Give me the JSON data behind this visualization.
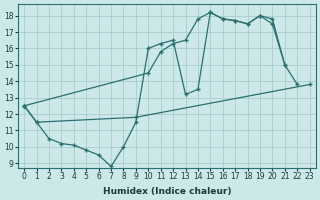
{
  "xlabel": "Humidex (Indice chaleur)",
  "bg_color": "#cce8e8",
  "grid_color": "#aacccc",
  "line_color": "#2a7070",
  "xlim": [
    -0.5,
    23.5
  ],
  "ylim": [
    8.7,
    18.7
  ],
  "xticks": [
    0,
    1,
    2,
    3,
    4,
    5,
    6,
    7,
    8,
    9,
    10,
    11,
    12,
    13,
    14,
    15,
    16,
    17,
    18,
    19,
    20,
    21,
    22,
    23
  ],
  "yticks": [
    9,
    10,
    11,
    12,
    13,
    14,
    15,
    16,
    17,
    18
  ],
  "line1_x": [
    0,
    1,
    2,
    3,
    4,
    5,
    6,
    7,
    8,
    9,
    10,
    11,
    12,
    13,
    14,
    15,
    16,
    17,
    18,
    19,
    20,
    21
  ],
  "line1_y": [
    12.5,
    11.5,
    10.5,
    10.2,
    10.1,
    9.8,
    9.5,
    8.8,
    10.0,
    11.5,
    16.0,
    16.3,
    16.5,
    13.2,
    13.5,
    18.2,
    17.8,
    17.7,
    17.5,
    18.0,
    17.8,
    15.0
  ],
  "line2_x": [
    0,
    10,
    11,
    12,
    13,
    14,
    15,
    16,
    17,
    18,
    19,
    20,
    21,
    22
  ],
  "line2_y": [
    12.5,
    14.5,
    15.8,
    16.3,
    16.5,
    17.8,
    18.2,
    17.8,
    17.7,
    17.5,
    18.0,
    17.5,
    15.0,
    13.8
  ],
  "line3_x": [
    0,
    1,
    9,
    23
  ],
  "line3_y": [
    12.5,
    11.5,
    11.8,
    13.8
  ]
}
